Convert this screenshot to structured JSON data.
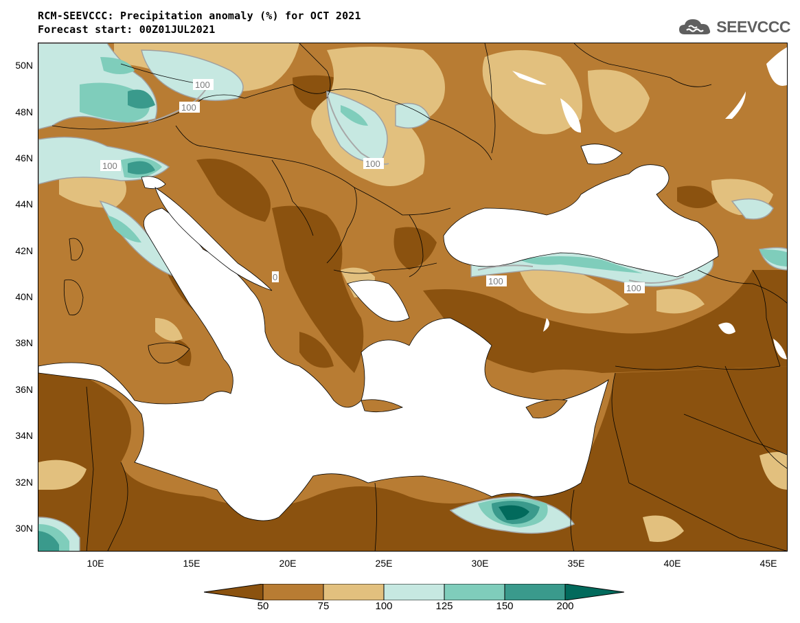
{
  "title_line1": "RCM-SEEVCCC: Precipitation anomaly (%) for OCT 2021",
  "title_line2": "Forecast start: 00Z01JUL2021",
  "logo": {
    "text": "SEEVCCC",
    "icon": "cloud-logo-icon"
  },
  "map": {
    "variable": "Precipitation anomaly",
    "unit": "%",
    "lat_range": [
      29,
      51
    ],
    "lon_range": [
      7,
      46
    ],
    "lat_ticks": [
      "50N",
      "48N",
      "46N",
      "44N",
      "42N",
      "40N",
      "38N",
      "36N",
      "34N",
      "32N",
      "30N"
    ],
    "lon_ticks": [
      "10E",
      "15E",
      "20E",
      "25E",
      "30E",
      "35E",
      "40E",
      "45E"
    ],
    "contour_labels": [
      "100",
      "100",
      "100",
      "100",
      "100",
      "100",
      "100"
    ]
  },
  "colorbar": {
    "labels": [
      "50",
      "75",
      "100",
      "125",
      "150",
      "200"
    ],
    "colors": [
      "#8b520f",
      "#b87c33",
      "#e2c07e",
      "#c6e8e1",
      "#7fcdbb",
      "#3a9a8c",
      "#026a5c"
    ]
  }
}
